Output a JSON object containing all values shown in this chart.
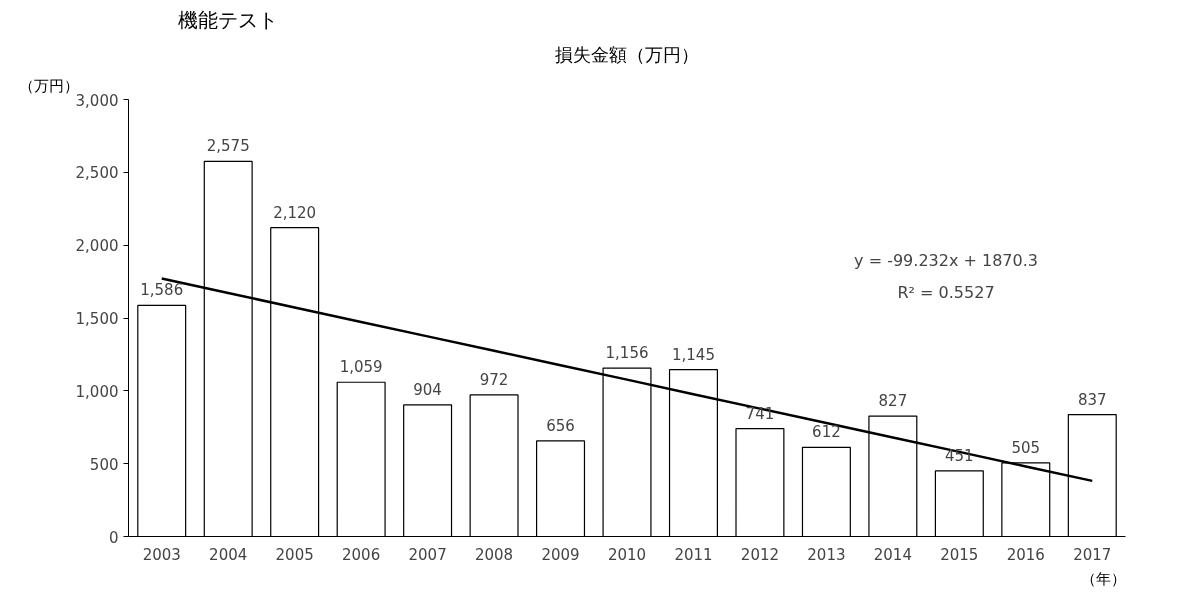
{
  "chart_data": {
    "type": "bar",
    "title": "損失金額（万円）",
    "ylabel": "（万円）",
    "xlabel": "（年）",
    "categories": [
      "2003",
      "2004",
      "2005",
      "2006",
      "2007",
      "2008",
      "2009",
      "2010",
      "2011",
      "2012",
      "2013",
      "2014",
      "2015",
      "2016",
      "2017"
    ],
    "series": [
      {
        "color": "#ffffff",
        "values": [
          1586,
          2575,
          2120,
          1059,
          904,
          972,
          656,
          1156,
          1145,
          741,
          612,
          827,
          451,
          505,
          837
        ],
        "value_labels": [
          "1,586",
          "2,575",
          "2,120",
          "1,059",
          "904",
          "972",
          "656",
          "1,156",
          "1,145",
          "741",
          "612",
          "827",
          "451",
          "505",
          "837"
        ]
      },
      {
        "type": "line",
        "color": "#000000",
        "values": [
          1771,
          1672,
          1572,
          1473,
          1374,
          1275,
          1176,
          1077,
          977,
          878,
          779,
          680,
          581,
          481,
          382
        ]
      }
    ],
    "ylim": [
      0,
      3000
    ],
    "yticks": [
      0,
      {
        "value": 500,
        "label": "500"
      },
      {
        "value": 1000,
        "label": "1,000"
      },
      {
        "value": 1500,
        "label": "1,500"
      },
      {
        "value": 2000,
        "label": "2,000"
      },
      {
        "value": 2500,
        "label": "2,500"
      },
      {
        "value": 3000,
        "label": "3,000"
      }
    ],
    "grid": false,
    "annotations": [
      "機能テスト",
      "y = -99.232x + 1870.3",
      "R² = 0.5527"
    ]
  }
}
